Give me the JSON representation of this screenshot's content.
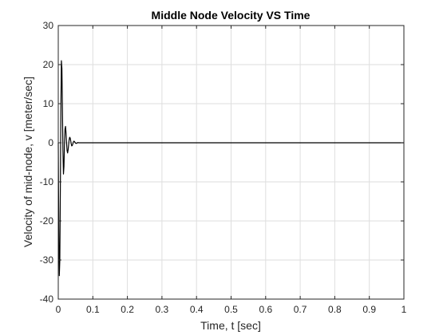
{
  "chart_data": {
    "type": "line",
    "title": "Middle Node Velocity VS Time",
    "xlabel": "Time, t [sec]",
    "ylabel": "Velocity of mid-node, v [meter/sec]",
    "xlim": [
      0,
      1
    ],
    "ylim": [
      -40,
      30
    ],
    "x_ticks": [
      0,
      0.1,
      0.2,
      0.3,
      0.4,
      0.5,
      0.6,
      0.7,
      0.8,
      0.9,
      1
    ],
    "x_tick_labels": [
      "0",
      "0.1",
      "0.2",
      "0.3",
      "0.4",
      "0.5",
      "0.6",
      "0.7",
      "0.8",
      "0.9",
      "1"
    ],
    "y_ticks": [
      30,
      20,
      10,
      0,
      -10,
      -20,
      -30,
      -40
    ],
    "y_tick_labels": [
      "30",
      "20",
      "10",
      "0",
      "-10",
      "-20",
      "-30",
      "-40"
    ],
    "grid": true,
    "series": [
      {
        "color": "#000000",
        "x": [
          0,
          0.0015,
          0.003,
          0.0045,
          0.006,
          0.0075,
          0.009,
          0.0105,
          0.012,
          0.0135,
          0.015,
          0.0165,
          0.018,
          0.0195,
          0.021,
          0.0225,
          0.024,
          0.0255,
          0.027,
          0.0285,
          0.03,
          0.0315,
          0.033,
          0.0345,
          0.036,
          0.0375,
          0.039,
          0.0405,
          0.042,
          0.0435,
          0.045,
          0.0465,
          0.048,
          0.05,
          0.053,
          0.056,
          0.06,
          0.07,
          0.1,
          0.2,
          0.3,
          0.4,
          0.5,
          0.6,
          0.7,
          0.8,
          0.9,
          1.0
        ],
        "values": [
          0,
          -22,
          -34,
          -30,
          -12,
          8,
          21,
          19,
          9,
          -2,
          -8,
          -6,
          0,
          3.5,
          4.2,
          2.5,
          0,
          -2,
          -2.6,
          -1.8,
          -0.5,
          0.8,
          1.4,
          1.2,
          0.5,
          -0.3,
          -0.8,
          -0.7,
          -0.3,
          0.15,
          0.4,
          0.35,
          0.15,
          -0.1,
          -0.15,
          0.05,
          0,
          0,
          0,
          0,
          0,
          0,
          0,
          0,
          0,
          0,
          0,
          0
        ]
      }
    ]
  }
}
